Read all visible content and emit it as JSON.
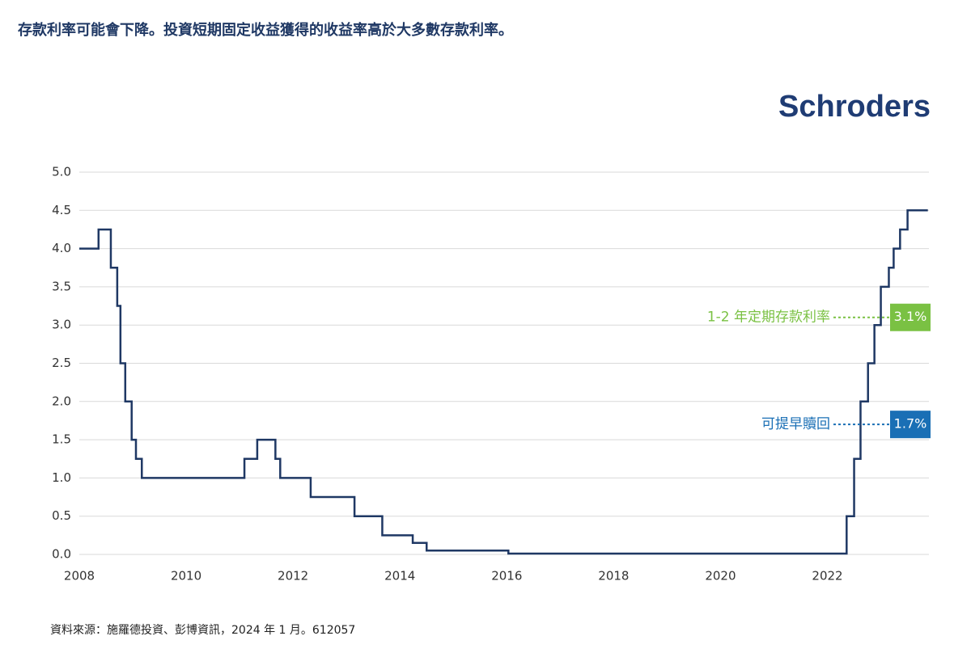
{
  "chart_data": {
    "type": "step",
    "title": "存款利率可能會下降。投資短期固定收益獲得的收益率高於大多數存款利率。",
    "logo": "Schroders",
    "source": "資料來源：施羅德投資、彭博資訊，2024 年 1 月。612057",
    "color": "#1f3864",
    "x": [
      2008.0,
      2008.36,
      2008.59,
      2008.71,
      2008.77,
      2008.86,
      2008.98,
      2009.06,
      2009.17,
      2011.09,
      2011.33,
      2011.67,
      2011.76,
      2012.33,
      2013.15,
      2013.67,
      2014.24,
      2014.5,
      2016.03,
      2022.36,
      2022.5,
      2022.62,
      2022.76,
      2022.88,
      2023.0,
      2023.15,
      2023.24,
      2023.36,
      2023.5,
      2023.88
    ],
    "values": [
      4.0,
      4.25,
      3.75,
      3.25,
      2.5,
      2.0,
      1.5,
      1.25,
      1.0,
      1.25,
      1.5,
      1.25,
      1.0,
      0.75,
      0.5,
      0.25,
      0.15,
      0.05,
      0.01,
      0.5,
      1.25,
      2.0,
      2.5,
      3.0,
      3.5,
      3.75,
      4.0,
      4.25,
      4.5,
      4.5
    ],
    "xlim": [
      2008,
      2023.9
    ],
    "ylim": [
      0,
      5.0
    ],
    "xticks": [
      2008,
      2010,
      2012,
      2014,
      2016,
      2018,
      2020,
      2022
    ],
    "yticks": [
      {
        "value": 0,
        "label": "0.0"
      },
      {
        "value": 0.5,
        "label": "0.5"
      },
      {
        "value": 1,
        "label": "1.0"
      },
      {
        "value": 1.5,
        "label": "1.5"
      },
      {
        "value": 2,
        "label": "2.0"
      },
      {
        "value": 2.5,
        "label": "2.5"
      },
      {
        "value": 3,
        "label": "3.0"
      },
      {
        "value": 3.5,
        "label": "3.5"
      },
      {
        "value": 4,
        "label": "4.0"
      },
      {
        "value": 4.5,
        "label": "4.5"
      },
      {
        "value": 5,
        "label": "5.0"
      }
    ],
    "grid": true,
    "markers": [
      {
        "label": "1-2 年定期存款利率",
        "value": 3.1,
        "value_label": "3.1%",
        "color": "#7ac143"
      },
      {
        "label": "可提早贖回",
        "value": 1.7,
        "value_label": "1.7%",
        "color": "#1a6fb5"
      }
    ]
  }
}
